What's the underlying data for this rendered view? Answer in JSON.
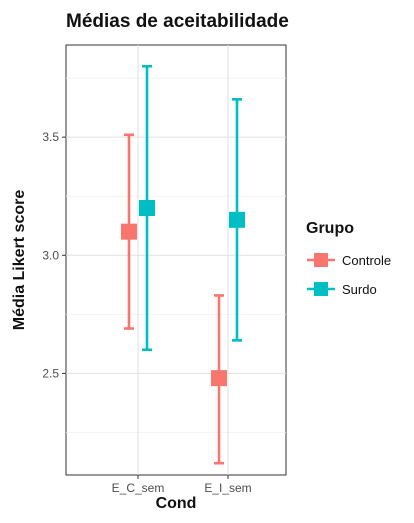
{
  "chart_data": {
    "type": "scatter",
    "title": "Médias de aceitabilidade",
    "xlabel": "Cond",
    "ylabel": "Média Likert score",
    "categories": [
      "E_C_sem",
      "E_I_sem"
    ],
    "yticks": [
      2.5,
      3.0,
      3.5
    ],
    "ytick_labels": [
      "2.5",
      "3.0",
      "3.5"
    ],
    "ylim": [
      2.07,
      3.89
    ],
    "grid": true,
    "legend": {
      "title": "Grupo",
      "position": "right"
    },
    "series": [
      {
        "name": "Controle",
        "color": "#F8766D",
        "values": [
          3.1,
          2.48
        ],
        "lower": [
          2.69,
          2.12
        ],
        "upper": [
          3.51,
          2.83
        ]
      },
      {
        "name": "Surdo",
        "color": "#00BFC4",
        "values": [
          3.2,
          3.15
        ],
        "lower": [
          2.6,
          2.64
        ],
        "upper": [
          3.8,
          3.66
        ]
      }
    ]
  }
}
